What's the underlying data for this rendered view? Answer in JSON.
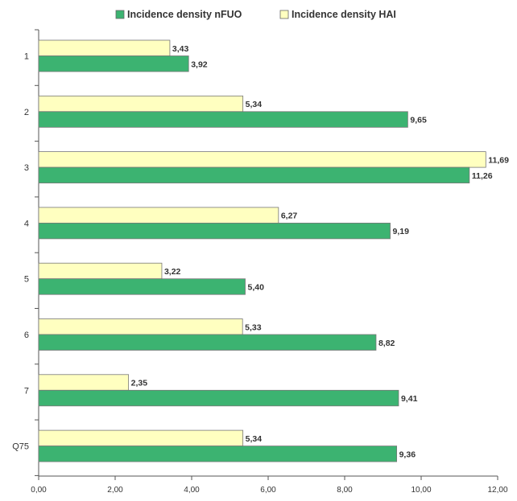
{
  "chart_data": {
    "type": "bar",
    "orientation": "horizontal",
    "categories": [
      "1",
      "2",
      "3",
      "4",
      "5",
      "6",
      "7",
      "Q75"
    ],
    "series": [
      {
        "name": "Incidence density HAI",
        "color": "#ffffc0",
        "values": [
          3.43,
          5.34,
          11.69,
          6.27,
          3.22,
          5.33,
          2.35,
          5.34
        ],
        "labels": [
          "3,43",
          "5,34",
          "11,69",
          "6,27",
          "3,22",
          "5,33",
          "2,35",
          "5,34"
        ]
      },
      {
        "name": "Incidence density nFUO",
        "color": "#3cb371",
        "values": [
          3.92,
          9.65,
          11.26,
          9.19,
          5.4,
          8.82,
          9.41,
          9.36
        ],
        "labels": [
          "3,92",
          "9,65",
          "11,26",
          "9,19",
          "5,40",
          "8,82",
          "9,41",
          "9,36"
        ]
      }
    ],
    "xlim": [
      0,
      12
    ],
    "x_ticks": [
      "0,00",
      "2,00",
      "4,00",
      "6,00",
      "8,00",
      "10,00",
      "12,00"
    ],
    "grid": false,
    "legend_position": "top"
  },
  "legend": {
    "nfuo_label": "Incidence density nFUO",
    "hai_label": "Incidence density HAI",
    "nfuo_color": "#3cb371",
    "hai_color": "#ffffc0"
  }
}
